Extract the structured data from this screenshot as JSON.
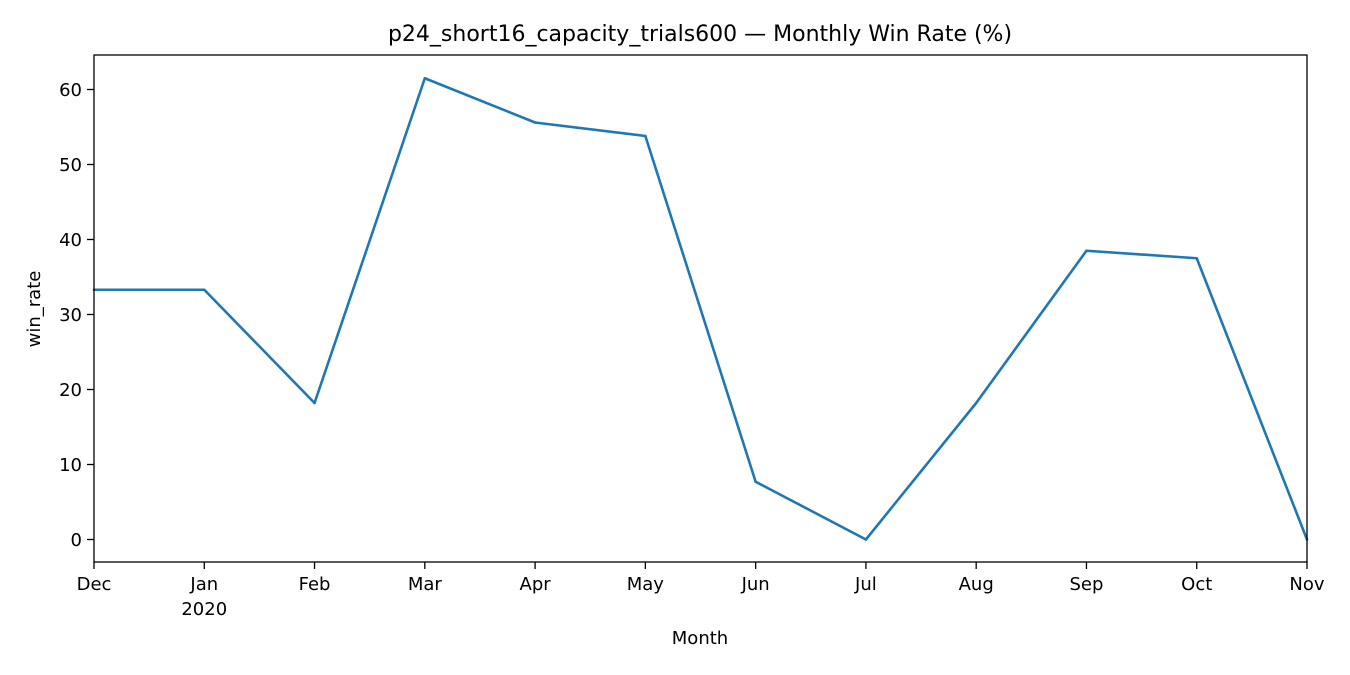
{
  "chart_data": {
    "type": "line",
    "title": "p24_short16_capacity_trials600 — Monthly Win Rate (%)",
    "xlabel": "Month",
    "ylabel": "win_rate",
    "x": [
      "2019-12",
      "2020-01",
      "2020-02",
      "2020-03",
      "2020-04",
      "2020-05",
      "2020-06",
      "2020-07",
      "2020-08",
      "2020-09",
      "2020-10",
      "2020-11"
    ],
    "x_tick_labels": [
      {
        "label": "Dec",
        "sublabel": ""
      },
      {
        "label": "Jan",
        "sublabel": "2020"
      },
      {
        "label": "Feb",
        "sublabel": ""
      },
      {
        "label": "Mar",
        "sublabel": ""
      },
      {
        "label": "Apr",
        "sublabel": ""
      },
      {
        "label": "May",
        "sublabel": ""
      },
      {
        "label": "Jun",
        "sublabel": ""
      },
      {
        "label": "Jul",
        "sublabel": ""
      },
      {
        "label": "Aug",
        "sublabel": ""
      },
      {
        "label": "Sep",
        "sublabel": ""
      },
      {
        "label": "Oct",
        "sublabel": ""
      },
      {
        "label": "Nov",
        "sublabel": ""
      }
    ],
    "series": [
      {
        "values": [
          33.3,
          33.3,
          18.2,
          61.5,
          55.6,
          53.8,
          7.7,
          0.0,
          18.2,
          38.5,
          37.5,
          0.0
        ],
        "color": "#1f77b4"
      }
    ],
    "yticks": [
      0,
      10,
      20,
      30,
      40,
      50,
      60
    ],
    "ylim": [
      -3.0,
      64.6
    ],
    "grid": false,
    "legend": "none"
  }
}
